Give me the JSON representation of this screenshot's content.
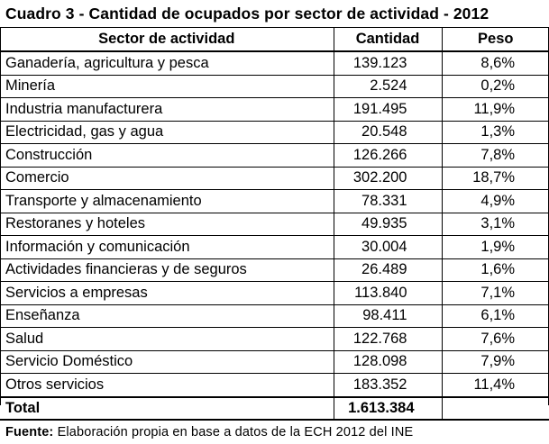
{
  "title": "Cuadro 3 - Cantidad de ocupados por sector de actividad - 2012",
  "headers": {
    "sector": "Sector de actividad",
    "quantity": "Cantidad",
    "weight": "Peso"
  },
  "rows": [
    {
      "sector": "Ganadería, agricultura y pesca",
      "quantity": "139.123",
      "weight": "8,6%"
    },
    {
      "sector": "Minería",
      "quantity": "2.524",
      "weight": "0,2%"
    },
    {
      "sector": "Industria manufacturera",
      "quantity": "191.495",
      "weight": "11,9%"
    },
    {
      "sector": "Electricidad, gas y agua",
      "quantity": "20.548",
      "weight": "1,3%"
    },
    {
      "sector": "Construcción",
      "quantity": "126.266",
      "weight": "7,8%"
    },
    {
      "sector": "Comercio",
      "quantity": "302.200",
      "weight": "18,7%"
    },
    {
      "sector": "Transporte y almacenamiento",
      "quantity": "78.331",
      "weight": "4,9%"
    },
    {
      "sector": "Restoranes y hoteles",
      "quantity": "49.935",
      "weight": "3,1%"
    },
    {
      "sector": "Información y comunicación",
      "quantity": "30.004",
      "weight": "1,9%"
    },
    {
      "sector": "Actividades financieras y de seguros",
      "quantity": "26.489",
      "weight": "1,6%"
    },
    {
      "sector": "Servicios a empresas",
      "quantity": "113.840",
      "weight": "7,1%"
    },
    {
      "sector": "Enseñanza",
      "quantity": "98.411",
      "weight": "6,1%"
    },
    {
      "sector": "Salud",
      "quantity": "122.768",
      "weight": "7,6%"
    },
    {
      "sector": "Servicio Doméstico",
      "quantity": "128.098",
      "weight": "7,9%"
    },
    {
      "sector": "Otros servicios",
      "quantity": "183.352",
      "weight": "11,4%"
    }
  ],
  "total": {
    "label": "Total",
    "quantity": "1.613.384",
    "weight": ""
  },
  "source": {
    "label": "Fuente:",
    "text": "Elaboración propia en base a datos de la ECH 2012 del INE"
  }
}
